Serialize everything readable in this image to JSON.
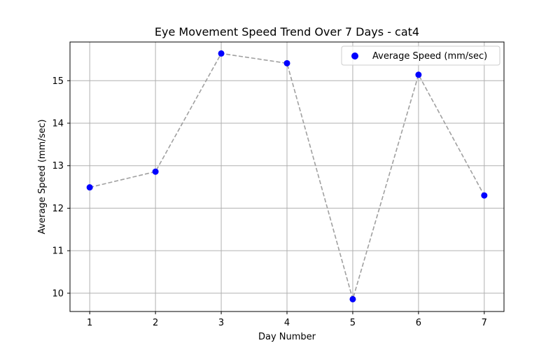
{
  "chart_data": {
    "type": "scatter",
    "title": "Eye Movement Speed Trend Over 7 Days - cat4",
    "xlabel": "Day Number",
    "ylabel": "Average Speed (mm/sec)",
    "xlim": [
      0.7,
      7.3
    ],
    "ylim": [
      9.57,
      15.91
    ],
    "xticks": [
      1,
      2,
      3,
      4,
      5,
      6,
      7
    ],
    "yticks": [
      10,
      11,
      12,
      13,
      14,
      15
    ],
    "grid": true,
    "legend_position": "top-right",
    "series": [
      {
        "name": "Average Speed (mm/sec)",
        "x": [
          1,
          2,
          3,
          4,
          5,
          6,
          7
        ],
        "y": [
          12.49,
          12.86,
          15.64,
          15.41,
          9.86,
          15.14,
          12.3
        ],
        "marker_color": "#0000ff",
        "line_style": "dashed",
        "line_color": "#a0a0a0"
      }
    ]
  }
}
